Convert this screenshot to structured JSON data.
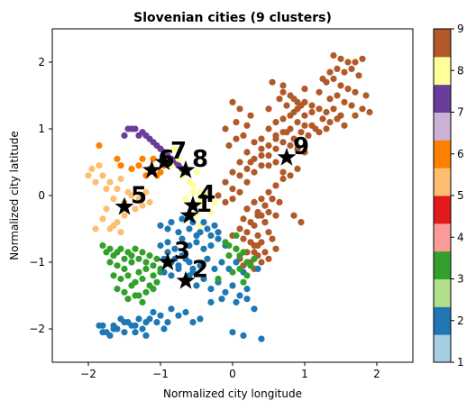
{
  "chart_data": {
    "type": "scatter",
    "title": "Slovenian cities (9 clusters)",
    "xlabel": "Normalized city longitude",
    "ylabel": "Normalized city latitude",
    "xlim": [
      -2.5,
      2.5
    ],
    "ylim": [
      -2.5,
      2.5
    ],
    "xticks": [
      "−2",
      "−1",
      "0",
      "1",
      "2"
    ],
    "yticks": [
      "−2",
      "−1",
      "0",
      "1",
      "2"
    ],
    "grid": false,
    "colorbar": {
      "ticks": [
        "1",
        "2",
        "3",
        "4",
        "5",
        "6",
        "7",
        "8",
        "9"
      ],
      "colors": [
        "#a6cee3",
        "#1f78b4",
        "#b2df8a",
        "#33a02c",
        "#fb9a99",
        "#e31a1c",
        "#fdbf6f",
        "#ff7f00",
        "#cab2d6",
        "#6a3d9a",
        "#ffff99",
        "#b15928"
      ]
    },
    "cluster_colors": {
      "1": "#ff7f00",
      "2": "#1f78b4",
      "3": "#33a02c",
      "4": "#ffff99",
      "5": "#fdbf6f",
      "6": "#ff7f00",
      "7": "#6a3d9a",
      "8": "#ffff99",
      "9": "#b15928"
    },
    "centroids": [
      {
        "label": "1",
        "x": -0.6,
        "y": -0.3
      },
      {
        "label": "2",
        "x": -0.65,
        "y": -1.28
      },
      {
        "label": "3",
        "x": -0.9,
        "y": -1.0
      },
      {
        "label": "4",
        "x": -0.55,
        "y": -0.15
      },
      {
        "label": "5",
        "x": -1.5,
        "y": -0.17
      },
      {
        "label": "6",
        "x": -1.12,
        "y": 0.38
      },
      {
        "label": "7",
        "x": -0.95,
        "y": 0.5
      },
      {
        "label": "8",
        "x": -0.65,
        "y": 0.38
      },
      {
        "label": "9",
        "x": 0.75,
        "y": 0.57
      }
    ],
    "points": [
      {
        "cluster": 9,
        "x": [
          1.4,
          1.5,
          1.6,
          1.7,
          1.8,
          1.45,
          1.55,
          1.65,
          1.75,
          1.85,
          1.3,
          1.4,
          1.5,
          1.6,
          1.7,
          1.2,
          1.35,
          1.45,
          1.55,
          1.65,
          1.0,
          1.1,
          1.2,
          1.3,
          1.4,
          1.5,
          0.9,
          1.0,
          1.1,
          1.25,
          1.35,
          0.8,
          0.9,
          1.0,
          1.15,
          0.7,
          0.8,
          0.95,
          1.05,
          0.6,
          0.75,
          0.85,
          0.5,
          0.6,
          0.7,
          0.8,
          0.4,
          0.5,
          0.6,
          0.3,
          0.4,
          0.5,
          0.2,
          0.3,
          0.4,
          0.1,
          0.2,
          0.3,
          0.0,
          0.1,
          0.2,
          -0.1,
          0.0,
          0.1,
          -0.2,
          -0.1,
          0.0,
          0.3,
          0.4,
          0.5,
          0.6,
          0.7,
          0.2,
          0.35,
          0.45,
          0.55,
          0.15,
          0.25,
          0.4,
          0.5,
          0.65,
          0.1,
          0.2,
          0.3,
          0.45,
          0.6,
          0.0,
          0.15,
          0.25,
          0.35,
          0.5,
          0.05,
          0.2,
          0.3,
          0.4,
          0.55,
          0.1,
          0.25,
          0.35,
          0.45,
          0.6,
          0.15,
          0.3,
          0.4,
          0.5,
          0.2,
          0.35,
          0.45,
          0.55,
          0.25,
          0.4,
          0.5,
          0.6,
          0.7,
          0.8,
          0.9,
          0.5,
          0.65,
          0.75,
          0.85,
          0.7,
          0.8,
          0.9,
          1.0,
          0.55,
          0.7,
          0.85,
          0.95,
          -0.05,
          0.05,
          0.15,
          -0.1,
          0.05,
          0.2,
          0.0,
          0.1,
          0.25,
          1.1,
          1.2,
          1.3,
          1.45,
          1.55,
          1.7,
          1.8,
          1.9,
          1.25,
          1.35,
          0.6,
          0.7,
          0.9,
          1.0,
          0.45,
          0.85,
          0.95,
          0.3,
          0.35
        ],
        "y": [
          2.1,
          2.05,
          2.0,
          2.0,
          2.05,
          1.9,
          1.85,
          1.9,
          1.8,
          1.5,
          1.7,
          1.75,
          1.65,
          1.6,
          1.55,
          1.55,
          1.45,
          1.5,
          1.4,
          1.35,
          1.4,
          1.35,
          1.3,
          1.25,
          1.3,
          1.2,
          1.3,
          1.2,
          1.25,
          1.15,
          1.1,
          1.2,
          1.1,
          1.05,
          1.0,
          1.15,
          1.0,
          0.95,
          0.9,
          1.1,
          0.95,
          0.85,
          1.0,
          0.9,
          0.8,
          0.75,
          0.85,
          0.75,
          0.7,
          0.8,
          0.7,
          0.6,
          0.65,
          0.55,
          0.45,
          0.5,
          0.4,
          0.35,
          0.35,
          0.3,
          0.2,
          0.2,
          0.1,
          0.05,
          0.0,
          -0.1,
          -0.05,
          -0.1,
          -0.05,
          0.05,
          0.15,
          0.25,
          -0.2,
          -0.25,
          -0.15,
          -0.05,
          -0.35,
          -0.4,
          -0.3,
          -0.25,
          -0.1,
          -0.5,
          -0.55,
          -0.45,
          -0.4,
          -0.3,
          -0.6,
          -0.65,
          -0.7,
          -0.6,
          -0.55,
          -0.8,
          -0.85,
          -0.75,
          -0.7,
          -0.65,
          -0.95,
          -1.0,
          -0.9,
          -0.85,
          -0.8,
          -1.05,
          -1.1,
          -1.0,
          -0.95,
          -0.2,
          -0.3,
          -0.15,
          -0.05,
          0.5,
          0.6,
          0.45,
          0.5,
          0.35,
          0.3,
          0.4,
          1.3,
          1.45,
          1.35,
          1.25,
          1.55,
          1.5,
          1.4,
          1.6,
          1.7,
          1.65,
          1.45,
          1.35,
          0.75,
          0.85,
          0.9,
          1.0,
          1.1,
          1.05,
          1.4,
          1.3,
          1.2,
          1.05,
          0.95,
          1.0,
          1.15,
          1.05,
          1.2,
          1.3,
          1.25,
          1.75,
          1.85,
          0.85,
          0.95,
          0.7,
          0.65,
          -0.4,
          -0.3,
          -0.4,
          -0.85,
          -0.75
        ]
      },
      {
        "cluster": 7,
        "x": [
          -1.5,
          -1.45,
          -1.35,
          -1.25,
          -1.15,
          -1.05,
          -0.95,
          -0.85,
          -0.75,
          -0.7,
          -1.2,
          -1.1,
          -1.0,
          -0.9,
          -0.8,
          -1.4,
          -1.3,
          -0.65
        ],
        "y": [
          0.9,
          1.0,
          1.0,
          0.95,
          0.85,
          0.75,
          0.65,
          0.55,
          0.45,
          0.4,
          0.9,
          0.8,
          0.7,
          0.6,
          0.5,
          1.0,
          0.9,
          0.35
        ]
      },
      {
        "cluster": 6,
        "x": [
          -1.85,
          -1.6,
          -1.55,
          -1.4,
          -1.3,
          -1.25,
          -1.15,
          -1.05,
          -0.95,
          -1.1,
          -1.0,
          -1.2
        ],
        "y": [
          0.75,
          0.55,
          0.45,
          0.4,
          0.45,
          0.55,
          0.4,
          0.3,
          0.45,
          0.55,
          0.35,
          0.3
        ]
      },
      {
        "cluster": 8,
        "x": [
          -0.8,
          -0.75,
          -0.7,
          -0.6,
          -0.55,
          -0.5,
          -0.85,
          -0.65,
          -0.55,
          -0.45
        ],
        "y": [
          0.7,
          0.55,
          0.3,
          0.2,
          0.05,
          0.35,
          0.45,
          -0.05,
          0.15,
          0.05
        ]
      },
      {
        "cluster": 5,
        "x": [
          -2.0,
          -1.95,
          -1.9,
          -1.85,
          -1.8,
          -1.75,
          -1.7,
          -1.65,
          -1.6,
          -1.55,
          -1.5,
          -1.45,
          -1.4,
          -1.35,
          -1.3,
          -1.25,
          -1.2,
          -1.15,
          -1.8,
          -1.7,
          -1.6,
          -1.5,
          -1.75,
          -1.65,
          -1.55,
          -1.9
        ],
        "y": [
          0.3,
          0.4,
          0.2,
          0.45,
          0.3,
          0.1,
          0.2,
          -0.05,
          0.1,
          0.25,
          -0.1,
          0.05,
          0.0,
          -0.2,
          -0.05,
          -0.15,
          0.05,
          -0.1,
          -0.35,
          -0.5,
          -0.4,
          -0.3,
          -0.2,
          -0.45,
          -0.55,
          -0.5
        ]
      },
      {
        "cluster": 4,
        "x": [
          -0.45,
          -0.4,
          -0.5,
          -0.3,
          -0.35,
          -0.55,
          -0.45,
          -0.25
        ],
        "y": [
          -0.05,
          -0.15,
          -0.3,
          -0.25,
          0.0,
          -0.15,
          -0.45,
          -0.1
        ]
      },
      {
        "cluster": 2,
        "x": [
          -1.0,
          -0.9,
          -0.85,
          -0.75,
          -0.7,
          -0.6,
          -0.55,
          -0.5,
          -0.45,
          -0.4,
          -0.35,
          -0.3,
          -0.25,
          -0.2,
          -1.0,
          -0.9,
          -0.8,
          -0.7,
          -0.6,
          -0.5,
          -0.4,
          -0.3,
          -0.2,
          -0.1,
          -0.95,
          -0.85,
          -0.75,
          -0.65,
          -0.55,
          -0.45,
          -0.35,
          -0.25,
          -0.15,
          -0.05,
          0.05,
          0.15,
          0.25,
          0.35,
          -0.6,
          -0.5,
          -0.4,
          -0.3,
          -0.2,
          -0.1,
          0.0,
          0.1,
          0.2,
          -0.3,
          -0.15,
          0.05,
          0.2,
          0.3,
          -1.85,
          -1.75,
          -1.65,
          -1.55,
          -1.45,
          -1.35,
          -1.25,
          -1.15,
          -1.05,
          -0.95,
          -1.8,
          -1.7,
          -1.6,
          -1.5,
          -1.4,
          -1.3,
          -1.2,
          -1.1,
          -1.0,
          -0.9,
          -1.8,
          -1.65,
          -1.5,
          -1.35,
          -1.2,
          -0.85,
          -0.75,
          -0.65,
          -0.55,
          -0.45,
          0.0,
          0.15,
          0.4
        ],
        "y": [
          -0.45,
          -0.5,
          -0.4,
          -0.55,
          -0.35,
          -0.5,
          -0.4,
          -0.6,
          -0.55,
          -0.4,
          -0.5,
          -0.6,
          -0.45,
          -0.55,
          -0.75,
          -0.7,
          -0.8,
          -0.65,
          -0.75,
          -0.7,
          -0.8,
          -0.75,
          -0.65,
          -0.75,
          -0.95,
          -1.0,
          -1.05,
          -0.95,
          -1.1,
          -1.05,
          -0.95,
          -1.1,
          -1.0,
          -1.1,
          -1.0,
          -1.15,
          -1.05,
          -1.1,
          -1.2,
          -1.35,
          -1.25,
          -1.4,
          -1.3,
          -1.45,
          -1.35,
          -1.5,
          -1.4,
          -1.6,
          -1.55,
          -1.6,
          -1.55,
          -1.7,
          -1.95,
          -2.05,
          -1.95,
          -1.85,
          -1.9,
          -1.95,
          -2.0,
          -1.85,
          -1.9,
          -2.0,
          -2.05,
          -2.1,
          -2.0,
          -2.05,
          -1.95,
          -1.85,
          -1.9,
          -1.75,
          -1.8,
          -1.9,
          -1.95,
          -2.0,
          -1.9,
          -2.05,
          -2.1,
          -1.7,
          -1.8,
          -1.75,
          -1.9,
          -1.85,
          -2.05,
          -2.1,
          -2.15
        ]
      },
      {
        "cluster": 3,
        "x": [
          -1.8,
          -1.75,
          -1.7,
          -1.65,
          -1.6,
          -1.55,
          -1.5,
          -1.45,
          -1.4,
          -1.35,
          -1.3,
          -1.25,
          -1.2,
          -1.15,
          -1.1,
          -1.05,
          -1.0,
          -1.7,
          -1.6,
          -1.5,
          -1.4,
          -1.3,
          -1.2,
          -1.1,
          -1.0,
          -1.65,
          -1.55,
          -1.45,
          -1.35,
          -1.25,
          -1.15,
          -1.05,
          -1.6,
          -1.5,
          -1.4,
          -1.3,
          -1.2,
          -1.1,
          -1.45,
          -1.35,
          -1.25,
          -0.1,
          -0.05,
          0.05,
          0.1,
          0.15,
          0.2,
          0.25,
          0.3,
          0.1,
          0.2,
          0.0,
          -0.05,
          0.05,
          0.15,
          -0.2
        ],
        "y": [
          -0.75,
          -0.85,
          -0.8,
          -0.9,
          -0.85,
          -0.8,
          -0.95,
          -0.85,
          -0.9,
          -0.8,
          -0.95,
          -0.85,
          -1.0,
          -0.9,
          -1.05,
          -0.95,
          -1.1,
          -1.0,
          -1.05,
          -1.1,
          -1.0,
          -1.15,
          -1.1,
          -1.2,
          -1.15,
          -1.2,
          -1.25,
          -1.2,
          -1.3,
          -1.25,
          -1.35,
          -1.3,
          -1.4,
          -1.45,
          -1.35,
          -1.5,
          -1.45,
          -1.4,
          -1.55,
          -1.5,
          -1.6,
          -0.7,
          -0.75,
          -0.8,
          -0.9,
          -0.85,
          -1.0,
          -1.05,
          -0.95,
          -1.1,
          -1.2,
          -1.15,
          -0.9,
          -0.6,
          -1.3,
          -1.25
        ]
      },
      {
        "cluster": 2,
        "x": [
          -0.9,
          -0.8,
          -0.7,
          -0.6,
          -0.95,
          -0.85,
          -0.75,
          -0.65,
          -0.55
        ],
        "y": [
          -0.85,
          -0.95,
          -0.9,
          -1.0,
          -1.15,
          -1.2,
          -1.1,
          -1.25,
          -1.15
        ]
      }
    ]
  }
}
